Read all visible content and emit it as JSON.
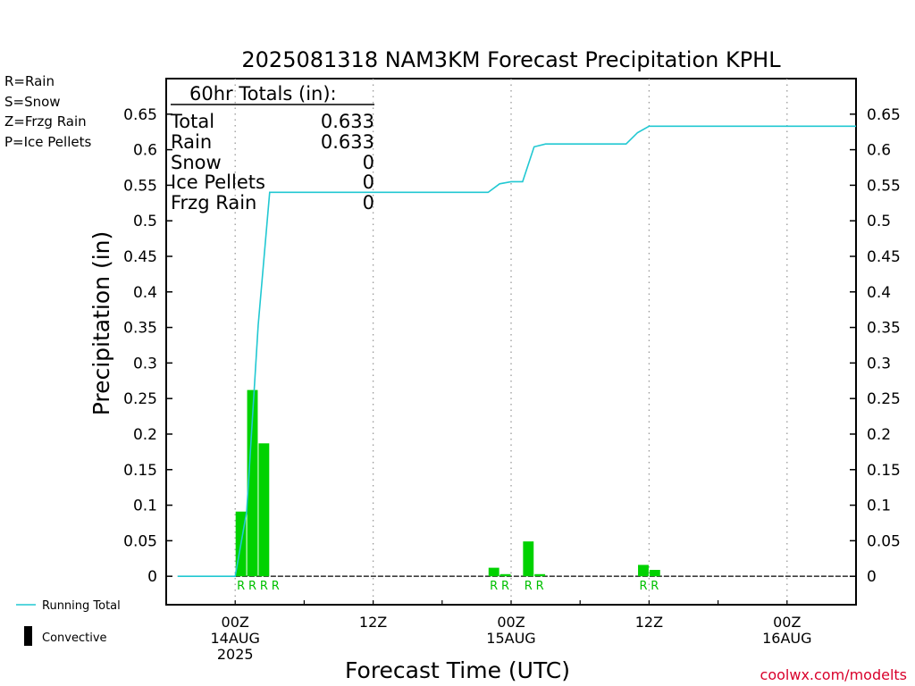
{
  "chart_data": {
    "type": "bar",
    "title": "2025081318 NAM3KM Forecast Precipitation KPHL",
    "xlabel": "Forecast Time (UTC)",
    "ylabel": "Precipitation (in)",
    "ylim": [
      -0.04,
      0.7
    ],
    "yticks": [
      0,
      0.05,
      0.1,
      0.15,
      0.2,
      0.25,
      0.3,
      0.35,
      0.4,
      0.45,
      0.5,
      0.55,
      0.6,
      0.65
    ],
    "ytick_labels": [
      "0",
      "0.05",
      "0.1",
      "0.15",
      "0.2",
      "0.25",
      "0.3",
      "0.35",
      "0.4",
      "0.45",
      "0.5",
      "0.55",
      "0.6",
      "0.65"
    ],
    "xlim_hours": [
      -6,
      54
    ],
    "xticks": [
      {
        "hour": 0,
        "lines": [
          "00Z",
          "14AUG",
          "2025"
        ]
      },
      {
        "hour": 12,
        "lines": [
          "12Z"
        ]
      },
      {
        "hour": 24,
        "lines": [
          "00Z",
          "15AUG"
        ]
      },
      {
        "hour": 36,
        "lines": [
          "12Z"
        ]
      },
      {
        "hour": 48,
        "lines": [
          "00Z",
          "16AUG"
        ]
      }
    ],
    "grid": "vertical dotted at 6-hour ticks",
    "bar_color": "#00d200",
    "line_color": "#21c8d2",
    "precip_type_colors": {
      "R": "#00c000",
      "S": "#3050ff",
      "Z": "#ff8a30",
      "P": "#e8008a"
    },
    "series": [
      {
        "kind": "bars",
        "bars": [
          {
            "hour": 1,
            "value": 0.091,
            "ptype": "R"
          },
          {
            "hour": 2,
            "value": 0.262,
            "ptype": "R"
          },
          {
            "hour": 3,
            "value": 0.187,
            "ptype": "R"
          },
          {
            "hour": 4,
            "value": 0.0,
            "ptype": "R"
          },
          {
            "hour": 23,
            "value": 0.012,
            "ptype": "R"
          },
          {
            "hour": 24,
            "value": 0.003,
            "ptype": "R"
          },
          {
            "hour": 26,
            "value": 0.049,
            "ptype": "R"
          },
          {
            "hour": 27,
            "value": 0.003,
            "ptype": "R"
          },
          {
            "hour": 36,
            "value": 0.016,
            "ptype": "R"
          },
          {
            "hour": 37,
            "value": 0.009,
            "ptype": "R"
          }
        ]
      },
      {
        "name": "Running Total",
        "kind": "line",
        "x": [
          -5,
          -1,
          0,
          1,
          2,
          3,
          12,
          22,
          23,
          24,
          25,
          26,
          27,
          28,
          34,
          35,
          36,
          37,
          48,
          54
        ],
        "values": [
          0,
          0,
          0,
          0.091,
          0.353,
          0.54,
          0.54,
          0.54,
          0.552,
          0.555,
          0.555,
          0.604,
          0.608,
          0.608,
          0.608,
          0.624,
          0.633,
          0.633,
          0.633,
          0.633
        ]
      }
    ]
  },
  "legend_top": [
    {
      "label": "R=Rain",
      "color": "#00c000"
    },
    {
      "label": "S=Snow",
      "color": "#3050ff"
    },
    {
      "label": "Z=Frzg Rain",
      "color": "#ff8a30"
    },
    {
      "label": "P=Ice Pellets",
      "color": "#e8008a"
    }
  ],
  "legend_bottom": {
    "running_total_label": "Running Total",
    "convective_label": "Convective"
  },
  "totals_box": {
    "header": "60hr Totals (in):",
    "rows": [
      {
        "label": "Total",
        "value": "0.633"
      },
      {
        "label": "Rain",
        "value": "0.633"
      },
      {
        "label": "Snow",
        "value": "0"
      },
      {
        "label": "Ice Pellets",
        "value": "0"
      },
      {
        "label": "Frzg Rain",
        "value": "0"
      }
    ]
  },
  "credit": "coolwx.com/modelts"
}
